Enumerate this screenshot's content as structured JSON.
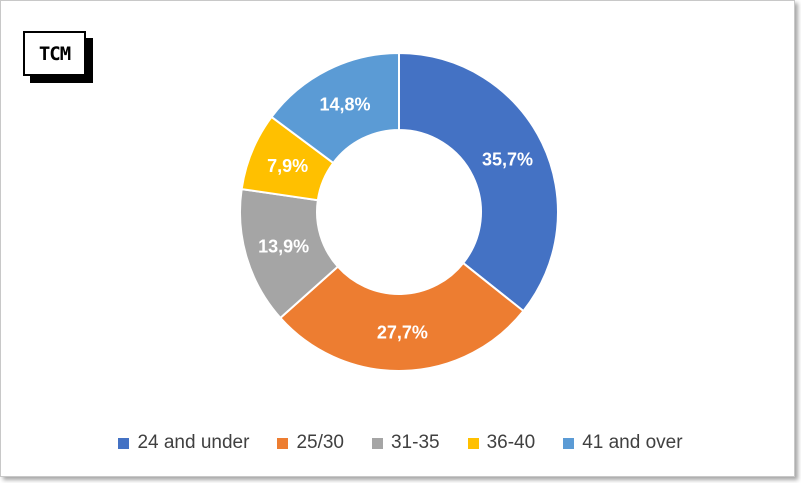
{
  "logo": {
    "text": "TCM"
  },
  "chart_data": {
    "type": "pie",
    "donut": true,
    "categories": [
      "24 and under",
      "25/30",
      "31-35",
      "36-40",
      "41 and over"
    ],
    "values": [
      35.7,
      27.7,
      13.9,
      7.9,
      14.8
    ],
    "data_labels": [
      "35,7%",
      "27,7%",
      "13,9%",
      "7,9%",
      "14,8%"
    ],
    "colors": [
      "#4472C4",
      "#ED7D31",
      "#A5A5A5",
      "#FFC000",
      "#5B9BD5"
    ],
    "legend_position": "bottom",
    "start_angle_deg": 0,
    "direction": "clockwise"
  }
}
